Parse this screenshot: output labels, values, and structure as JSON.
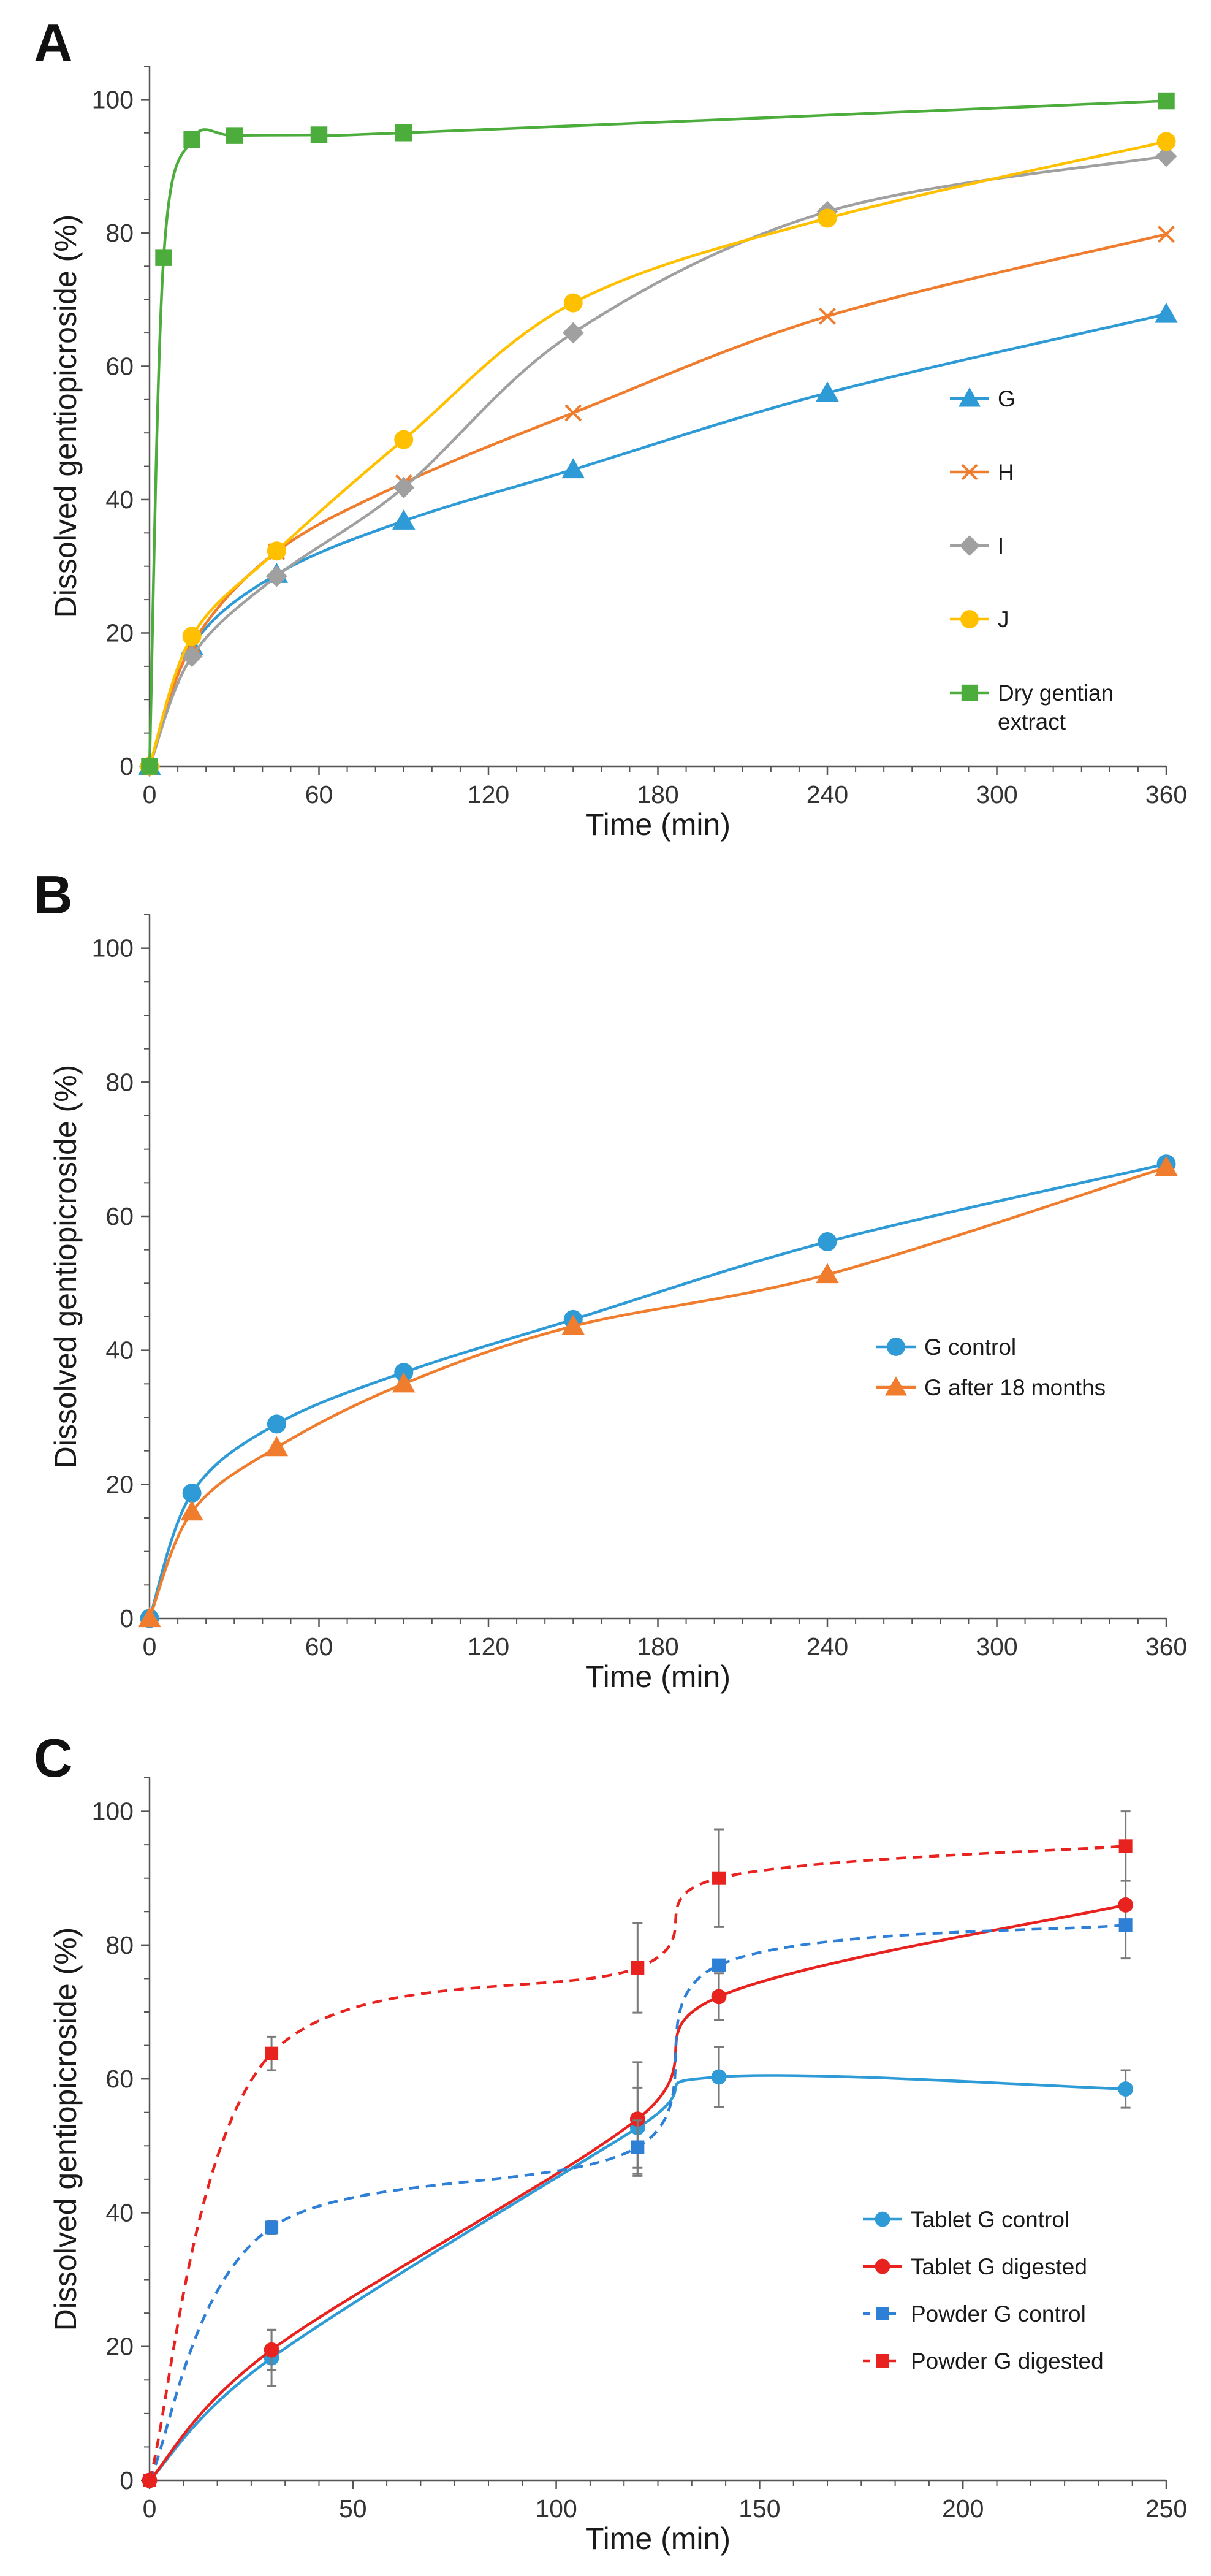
{
  "chart_data": [
    {
      "panel": "A",
      "type": "line",
      "title": "",
      "xlabel": "Time (min)",
      "ylabel": "Dissolved gentiopicroside (%)",
      "xlim": [
        0,
        360
      ],
      "ylim": [
        0,
        105
      ],
      "xticks": [
        0,
        60,
        120,
        180,
        240,
        300,
        360
      ],
      "yticks": [
        0,
        20,
        40,
        60,
        80,
        100
      ],
      "series": [
        {
          "name": "G",
          "color": "#2e9bd6",
          "marker": "triangle",
          "dash": false,
          "x": [
            0,
            15,
            45,
            90,
            150,
            240,
            360
          ],
          "y": [
            0,
            18,
            28.8,
            36.8,
            44.5,
            56,
            67.8
          ],
          "err": []
        },
        {
          "name": "H",
          "color": "#f07d2e",
          "marker": "cross",
          "dash": false,
          "x": [
            0,
            15,
            45,
            90,
            150,
            240,
            360
          ],
          "y": [
            0,
            18.2,
            32.2,
            42.5,
            53,
            67.5,
            79.8
          ],
          "err": []
        },
        {
          "name": "I",
          "color": "#a0a0a0",
          "marker": "diamond",
          "dash": false,
          "x": [
            0,
            15,
            45,
            90,
            150,
            240,
            360
          ],
          "y": [
            0,
            16.5,
            28.5,
            41.8,
            65,
            83.2,
            91.5
          ],
          "err": []
        },
        {
          "name": "J",
          "color": "#ffc000",
          "marker": "circle",
          "dash": false,
          "x": [
            0,
            15,
            45,
            90,
            150,
            240,
            360
          ],
          "y": [
            0,
            19.5,
            32.3,
            49,
            69.5,
            82.2,
            93.7
          ],
          "err": []
        },
        {
          "name": "Dry gentian extract",
          "color": "#4cad3c",
          "marker": "square",
          "dash": false,
          "x": [
            0,
            5,
            15,
            30,
            60,
            90,
            360
          ],
          "y": [
            0,
            76.3,
            94,
            94.6,
            94.7,
            95,
            99.8
          ],
          "err": []
        }
      ],
      "legend_position": "center-right"
    },
    {
      "panel": "B",
      "type": "line",
      "title": "",
      "xlabel": "Time (min)",
      "ylabel": "Dissolved gentiopicroside (%)",
      "xlim": [
        0,
        360
      ],
      "ylim": [
        0,
        105
      ],
      "xticks": [
        0,
        60,
        120,
        180,
        240,
        300,
        360
      ],
      "yticks": [
        0,
        20,
        40,
        60,
        80,
        100
      ],
      "series": [
        {
          "name": "G control",
          "color": "#2e9bd6",
          "marker": "circle",
          "dash": false,
          "x": [
            0,
            15,
            45,
            90,
            150,
            240,
            360
          ],
          "y": [
            0,
            18.7,
            29,
            36.7,
            44.6,
            56.2,
            67.8
          ],
          "err": []
        },
        {
          "name": "G after 18 months",
          "color": "#f07d2e",
          "marker": "triangle",
          "dash": false,
          "x": [
            0,
            15,
            45,
            90,
            150,
            240,
            360
          ],
          "y": [
            0,
            15.9,
            25.5,
            35,
            43.6,
            51.3,
            67.3
          ],
          "err": []
        }
      ],
      "legend_position": "center-right"
    },
    {
      "panel": "C",
      "type": "line",
      "title": "",
      "xlabel": "Time (min)",
      "ylabel": "Dissolved gentiopicroside (%)",
      "xlim": [
        0,
        250
      ],
      "ylim": [
        0,
        105
      ],
      "xticks": [
        0,
        50,
        100,
        150,
        200,
        250
      ],
      "yticks": [
        0,
        20,
        40,
        60,
        80,
        100
      ],
      "series": [
        {
          "name": "Tablet G control",
          "color": "#2e9bd6",
          "marker": "circle",
          "dash": false,
          "x": [
            0,
            30,
            120,
            140,
            240
          ],
          "y": [
            0,
            18.3,
            52.7,
            60.3,
            58.5
          ],
          "err": [
            0,
            4.2,
            6,
            4.5,
            2.8
          ]
        },
        {
          "name": "Tablet G digested",
          "color": "#e8231f",
          "marker": "circle",
          "dash": false,
          "x": [
            0,
            30,
            120,
            140,
            240
          ],
          "y": [
            0,
            19.5,
            54,
            72.3,
            86
          ],
          "err": [
            0,
            3,
            8.5,
            3.5,
            8
          ]
        },
        {
          "name": "Powder G control",
          "color": "#2e7fd6",
          "marker": "square",
          "dash": true,
          "x": [
            0,
            30,
            120,
            140,
            240
          ],
          "y": [
            0,
            37.8,
            49.8,
            77,
            83
          ],
          "err": [
            0,
            1,
            4,
            0,
            0
          ]
        },
        {
          "name": "Powder G digested",
          "color": "#e8231f",
          "marker": "square",
          "dash": true,
          "x": [
            0,
            30,
            120,
            140,
            240
          ],
          "y": [
            0,
            63.8,
            76.6,
            90,
            94.8
          ],
          "err": [
            0,
            2.5,
            6.7,
            7.3,
            5.2
          ]
        }
      ],
      "legend_position": "bottom-right"
    }
  ],
  "panel_labels": [
    "A",
    "B",
    "C"
  ]
}
